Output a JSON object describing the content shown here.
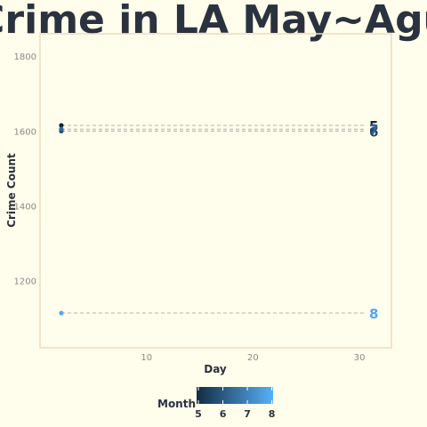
{
  "chart_data": {
    "type": "scatter",
    "title": "Crime in LA May~Agu",
    "xlabel": "Day",
    "ylabel": "Crime Count",
    "xlim": [
      0,
      33
    ],
    "ylim": [
      1020,
      1860
    ],
    "x_ticks": [
      10,
      20,
      30
    ],
    "y_ticks": [
      1200,
      1400,
      1600,
      1800
    ],
    "grid": false,
    "series": [
      {
        "month": 5,
        "label": "5",
        "x": [
          2
        ],
        "y": [
          1615
        ],
        "end_x": 31,
        "color": "#13233a"
      },
      {
        "month": 6,
        "label": "6",
        "x": [
          2
        ],
        "y": [
          1600
        ],
        "end_x": 31,
        "color": "#23456a"
      },
      {
        "month": 7,
        "label": "7",
        "x": [
          2
        ],
        "y": [
          1605
        ],
        "end_x": 31,
        "color": "#2f6797"
      },
      {
        "month": 8,
        "label": "8",
        "x": [
          2
        ],
        "y": [
          1113
        ],
        "end_x": 31,
        "color": "#56a6ea"
      }
    ],
    "legend": {
      "title": "Month",
      "placement": "bottom",
      "ticks": [
        "5",
        "6",
        "7",
        "8"
      ],
      "color_low": "#132b43",
      "color_high": "#56b1f7"
    }
  }
}
